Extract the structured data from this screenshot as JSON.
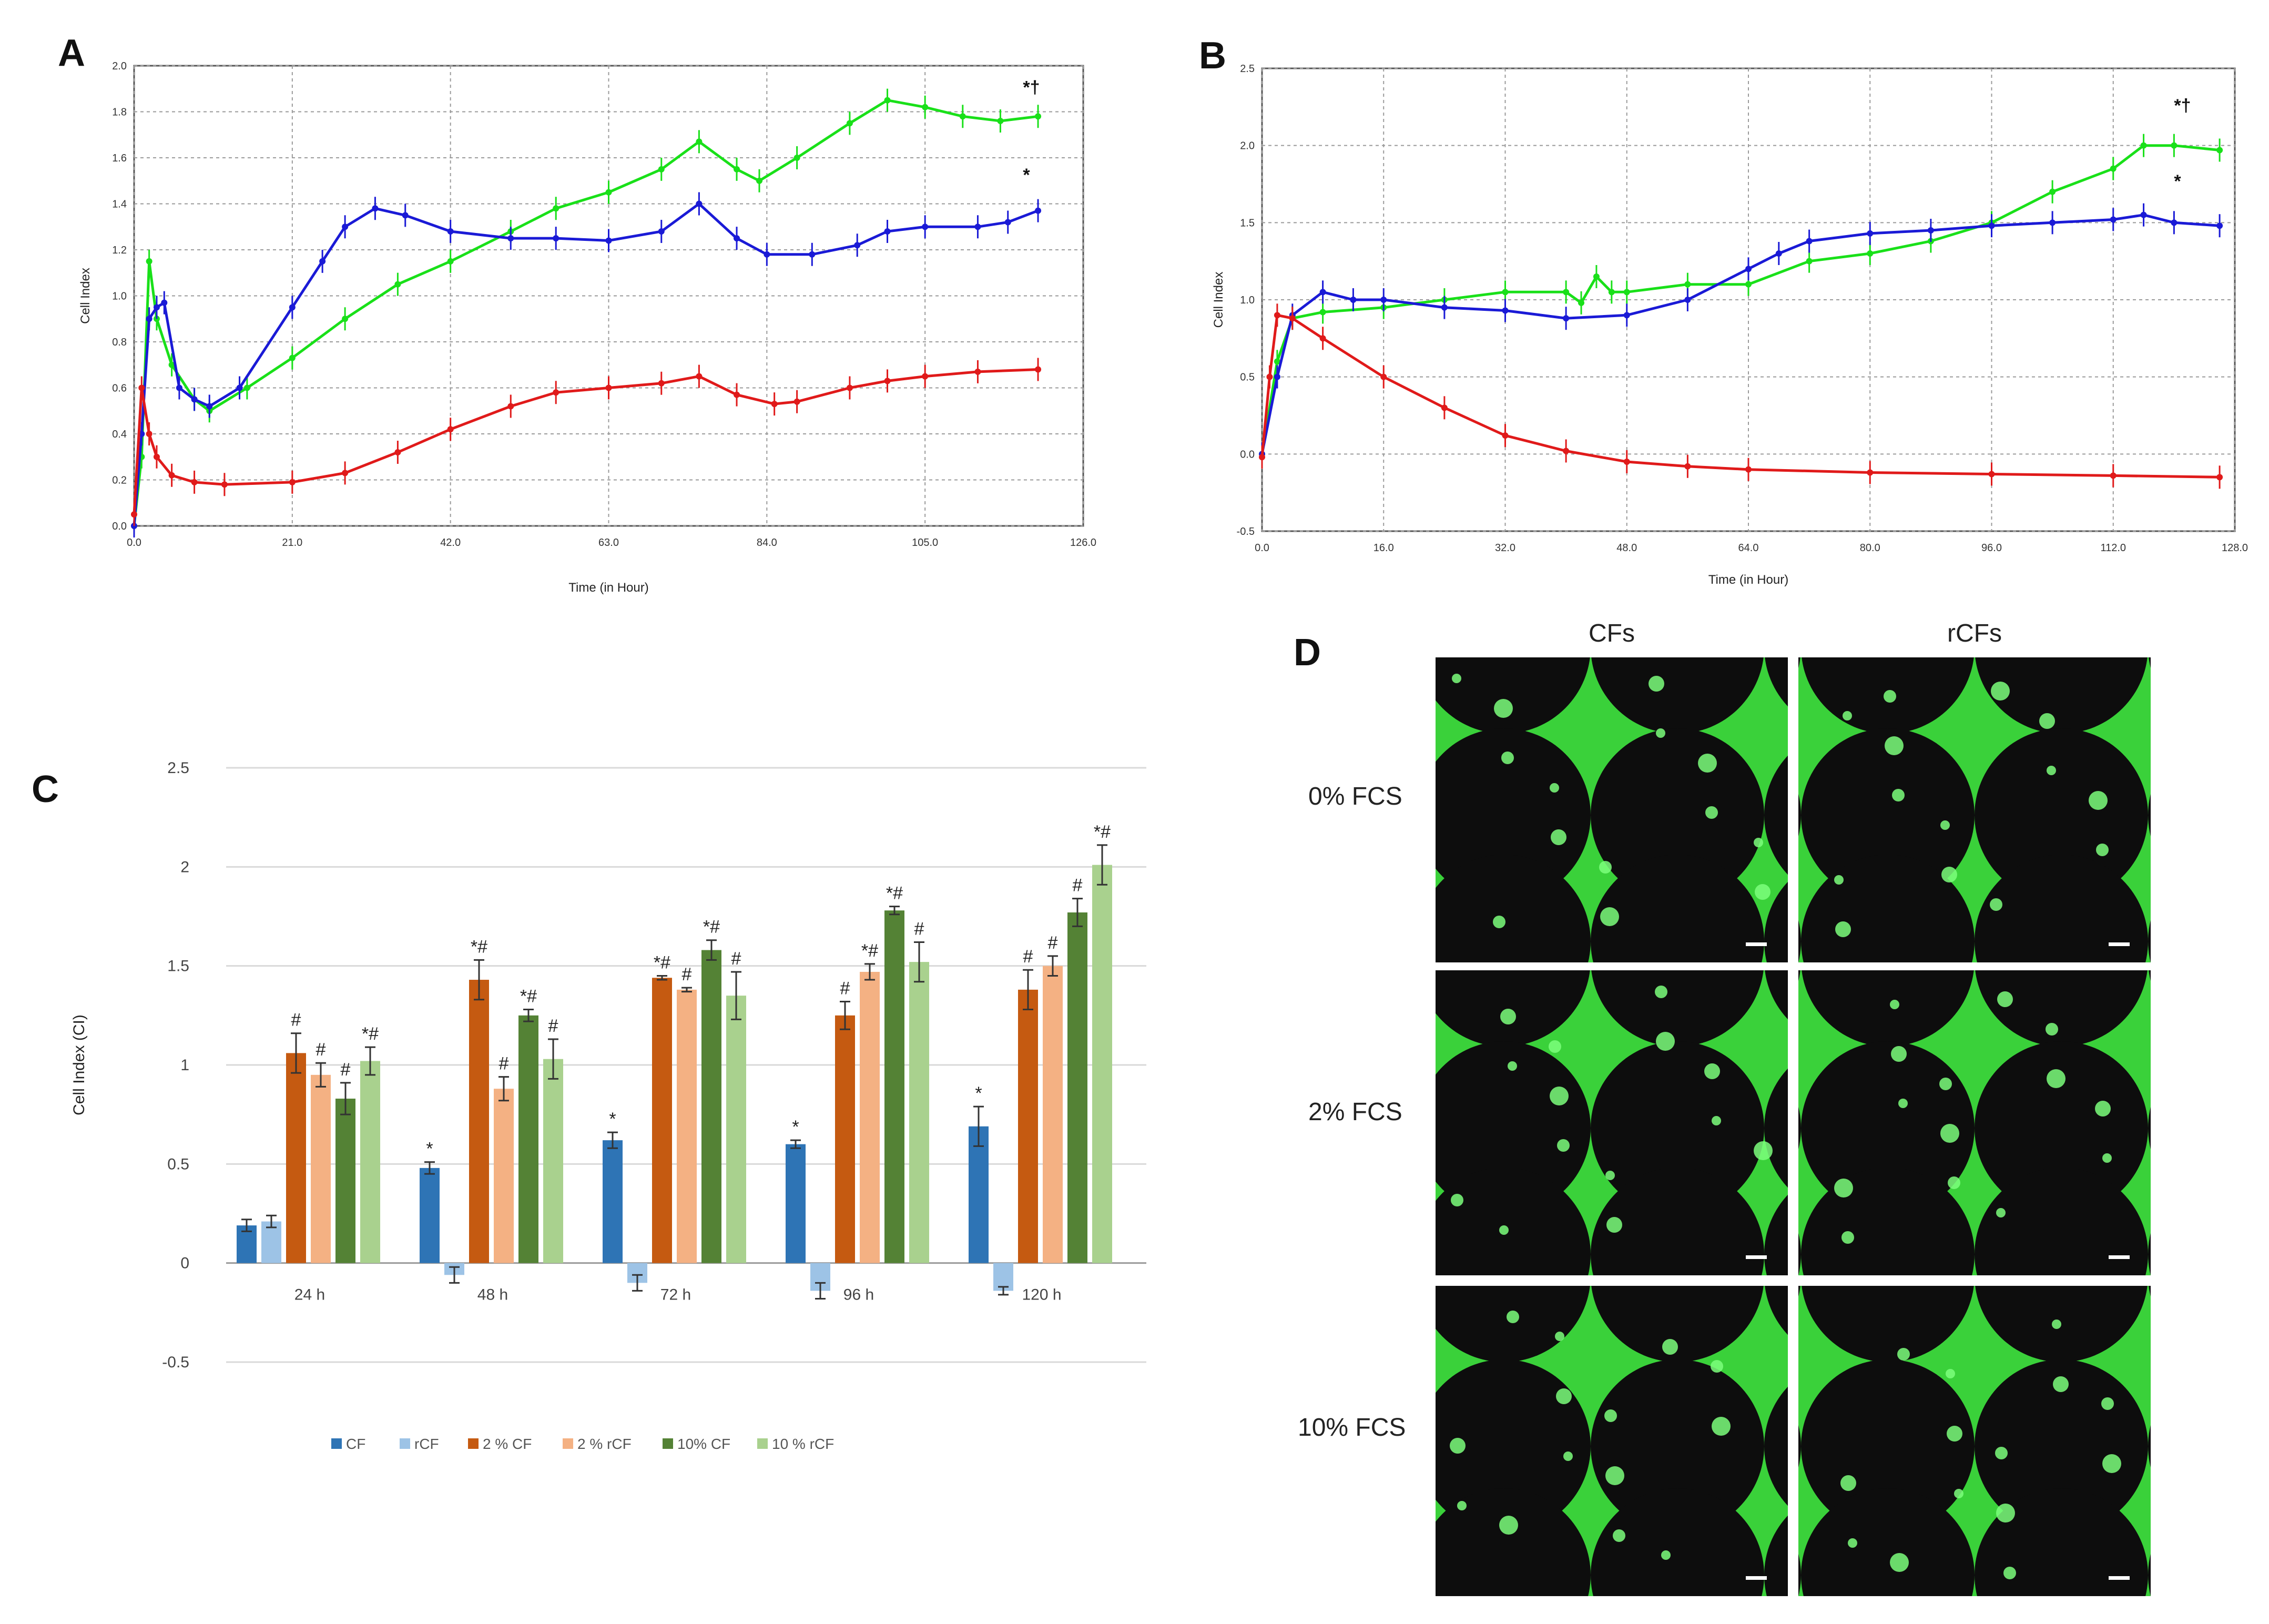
{
  "colors": {
    "green": "#19e019",
    "blue": "#1a1ad6",
    "red": "#e01a1a",
    "cf": "#2e74b5",
    "rcf": "#9dc3e6",
    "cf2": "#c55a11",
    "rcf2": "#f4b183",
    "cf10": "#548235",
    "rcf10": "#a9d18e",
    "micro_bg": "#3ad13a",
    "micro_hole": "#0d0d0d"
  },
  "panels": {
    "A": {
      "letter": "A",
      "ylabel": "Cell Index",
      "xlabel": "Time (in Hour)",
      "sig_top": "*†",
      "sig_mid": "*"
    },
    "B": {
      "letter": "B",
      "ylabel": "Cell Index",
      "xlabel": "Time (in Hour)",
      "sig_top": "*†",
      "sig_mid": "*"
    },
    "C": {
      "letter": "C"
    },
    "D": {
      "letter": "D",
      "col_headers": [
        "CFs",
        "rCFs"
      ],
      "row_labels": [
        "0% FCS",
        "2% FCS",
        "10% FCS"
      ]
    }
  },
  "chart_data": [
    {
      "id": "A",
      "type": "line",
      "xlabel": "Time (in Hour)",
      "ylabel": "Cell Index",
      "xlim": [
        0,
        126
      ],
      "ylim": [
        0,
        2.0
      ],
      "xticks": [
        "0.0",
        "21.0",
        "42.0",
        "63.0",
        "84.0",
        "105.0",
        "126.0"
      ],
      "yticks": [
        "0.0",
        "0.2",
        "0.4",
        "0.6",
        "0.8",
        "1.0",
        "1.2",
        "1.4",
        "1.6",
        "1.8",
        "2.0"
      ],
      "series": [
        {
          "name": "green",
          "color": "#19e019",
          "points": [
            [
              0,
              0
            ],
            [
              1,
              0.3
            ],
            [
              2,
              1.15
            ],
            [
              3,
              0.9
            ],
            [
              5,
              0.7
            ],
            [
              8,
              0.55
            ],
            [
              10,
              0.5
            ],
            [
              15,
              0.6
            ],
            [
              21,
              0.73
            ],
            [
              28,
              0.9
            ],
            [
              35,
              1.05
            ],
            [
              42,
              1.15
            ],
            [
              50,
              1.28
            ],
            [
              56,
              1.38
            ],
            [
              63,
              1.45
            ],
            [
              70,
              1.55
            ],
            [
              75,
              1.67
            ],
            [
              80,
              1.55
            ],
            [
              83,
              1.5
            ],
            [
              88,
              1.6
            ],
            [
              95,
              1.75
            ],
            [
              100,
              1.85
            ],
            [
              105,
              1.82
            ],
            [
              110,
              1.78
            ],
            [
              115,
              1.76
            ],
            [
              120,
              1.78
            ]
          ]
        },
        {
          "name": "blue",
          "color": "#1a1ad6",
          "points": [
            [
              0,
              0
            ],
            [
              1,
              0.4
            ],
            [
              2,
              0.9
            ],
            [
              3,
              0.95
            ],
            [
              4,
              0.97
            ],
            [
              6,
              0.6
            ],
            [
              8,
              0.55
            ],
            [
              10,
              0.52
            ],
            [
              14,
              0.6
            ],
            [
              21,
              0.95
            ],
            [
              25,
              1.15
            ],
            [
              28,
              1.3
            ],
            [
              32,
              1.38
            ],
            [
              36,
              1.35
            ],
            [
              42,
              1.28
            ],
            [
              50,
              1.25
            ],
            [
              56,
              1.25
            ],
            [
              63,
              1.24
            ],
            [
              70,
              1.28
            ],
            [
              75,
              1.4
            ],
            [
              80,
              1.25
            ],
            [
              84,
              1.18
            ],
            [
              90,
              1.18
            ],
            [
              96,
              1.22
            ],
            [
              100,
              1.28
            ],
            [
              105,
              1.3
            ],
            [
              112,
              1.3
            ],
            [
              116,
              1.32
            ],
            [
              120,
              1.37
            ]
          ]
        },
        {
          "name": "red",
          "color": "#e01a1a",
          "points": [
            [
              0,
              0.05
            ],
            [
              1,
              0.6
            ],
            [
              2,
              0.4
            ],
            [
              3,
              0.3
            ],
            [
              5,
              0.22
            ],
            [
              8,
              0.19
            ],
            [
              12,
              0.18
            ],
            [
              21,
              0.19
            ],
            [
              28,
              0.23
            ],
            [
              35,
              0.32
            ],
            [
              42,
              0.42
            ],
            [
              50,
              0.52
            ],
            [
              56,
              0.58
            ],
            [
              63,
              0.6
            ],
            [
              70,
              0.62
            ],
            [
              75,
              0.65
            ],
            [
              80,
              0.57
            ],
            [
              85,
              0.53
            ],
            [
              88,
              0.54
            ],
            [
              95,
              0.6
            ],
            [
              100,
              0.63
            ],
            [
              105,
              0.65
            ],
            [
              112,
              0.67
            ],
            [
              120,
              0.68
            ]
          ]
        }
      ],
      "annotations": [
        {
          "text": "*†",
          "x": 118,
          "y": 1.88
        },
        {
          "text": "*",
          "x": 118,
          "y": 1.5
        }
      ]
    },
    {
      "id": "B",
      "type": "line",
      "xlabel": "Time (in Hour)",
      "ylabel": "Cell Index",
      "xlim": [
        0,
        128
      ],
      "ylim": [
        -0.5,
        2.5
      ],
      "xticks": [
        "0.0",
        "16.0",
        "32.0",
        "48.0",
        "64.0",
        "80.0",
        "96.0",
        "112.0",
        "128.0"
      ],
      "yticks": [
        "-0.5",
        "0.0",
        "0.5",
        "1.0",
        "1.5",
        "2.0",
        "2.5"
      ],
      "series": [
        {
          "name": "green",
          "color": "#19e019",
          "points": [
            [
              0,
              0
            ],
            [
              2,
              0.6
            ],
            [
              4,
              0.88
            ],
            [
              8,
              0.92
            ],
            [
              16,
              0.95
            ],
            [
              24,
              1.0
            ],
            [
              32,
              1.05
            ],
            [
              40,
              1.05
            ],
            [
              42,
              0.98
            ],
            [
              44,
              1.15
            ],
            [
              46,
              1.05
            ],
            [
              48,
              1.05
            ],
            [
              56,
              1.1
            ],
            [
              64,
              1.1
            ],
            [
              72,
              1.25
            ],
            [
              80,
              1.3
            ],
            [
              88,
              1.38
            ],
            [
              96,
              1.5
            ],
            [
              104,
              1.7
            ],
            [
              112,
              1.85
            ],
            [
              116,
              2.0
            ],
            [
              120,
              2.0
            ],
            [
              126,
              1.97
            ]
          ]
        },
        {
          "name": "blue",
          "color": "#1a1ad6",
          "points": [
            [
              0,
              0
            ],
            [
              2,
              0.5
            ],
            [
              4,
              0.9
            ],
            [
              8,
              1.05
            ],
            [
              12,
              1.0
            ],
            [
              16,
              1.0
            ],
            [
              24,
              0.95
            ],
            [
              32,
              0.93
            ],
            [
              40,
              0.88
            ],
            [
              48,
              0.9
            ],
            [
              56,
              1.0
            ],
            [
              64,
              1.2
            ],
            [
              68,
              1.3
            ],
            [
              72,
              1.38
            ],
            [
              80,
              1.43
            ],
            [
              88,
              1.45
            ],
            [
              96,
              1.48
            ],
            [
              104,
              1.5
            ],
            [
              112,
              1.52
            ],
            [
              116,
              1.55
            ],
            [
              120,
              1.5
            ],
            [
              126,
              1.48
            ]
          ]
        },
        {
          "name": "red",
          "color": "#e01a1a",
          "points": [
            [
              0,
              -0.02
            ],
            [
              1,
              0.5
            ],
            [
              2,
              0.9
            ],
            [
              4,
              0.88
            ],
            [
              8,
              0.75
            ],
            [
              16,
              0.5
            ],
            [
              24,
              0.3
            ],
            [
              32,
              0.12
            ],
            [
              40,
              0.02
            ],
            [
              48,
              -0.05
            ],
            [
              56,
              -0.08
            ],
            [
              64,
              -0.1
            ],
            [
              80,
              -0.12
            ],
            [
              96,
              -0.13
            ],
            [
              112,
              -0.14
            ],
            [
              126,
              -0.15
            ]
          ]
        }
      ],
      "annotations": [
        {
          "text": "*†",
          "x": 120,
          "y": 2.22
        },
        {
          "text": "*",
          "x": 120,
          "y": 1.73
        }
      ]
    },
    {
      "id": "C",
      "type": "bar",
      "title": "",
      "xlabel": "",
      "ylabel": "Cell Index (CI)",
      "ylim": [
        -0.5,
        2.5
      ],
      "yticks": [
        "-0.5",
        "0",
        "0.5",
        "1",
        "1.5",
        "2",
        "2.5"
      ],
      "categories": [
        "24 h",
        "48 h",
        "72 h",
        "96 h",
        "120 h"
      ],
      "series": [
        {
          "name": "CF",
          "color": "#2e74b5",
          "values": [
            0.19,
            0.48,
            0.62,
            0.6,
            0.69
          ],
          "errors": [
            0.03,
            0.03,
            0.04,
            0.02,
            0.1
          ],
          "marks": [
            "",
            "*",
            "*",
            "*",
            "*"
          ]
        },
        {
          "name": "rCF",
          "color": "#9dc3e6",
          "values": [
            0.21,
            -0.06,
            -0.1,
            -0.14,
            -0.14
          ],
          "errors": [
            0.03,
            0.04,
            0.04,
            0.04,
            0.02
          ],
          "marks": [
            "",
            "",
            "",
            "",
            ""
          ]
        },
        {
          "name": "2 % CF",
          "color": "#c55a11",
          "values": [
            1.06,
            1.43,
            1.44,
            1.25,
            1.38
          ],
          "errors": [
            0.1,
            0.1,
            0.01,
            0.07,
            0.1
          ],
          "marks": [
            "#",
            "*#",
            "*#",
            "#",
            "#"
          ]
        },
        {
          "name": "2 % rCF",
          "color": "#f4b183",
          "values": [
            0.95,
            0.88,
            1.38,
            1.47,
            1.5
          ],
          "errors": [
            0.06,
            0.06,
            0.01,
            0.04,
            0.05
          ],
          "marks": [
            "#",
            "#",
            "#",
            "*#",
            "#"
          ]
        },
        {
          "name": "10% CF",
          "color": "#548235",
          "values": [
            0.83,
            1.25,
            1.58,
            1.78,
            1.77
          ],
          "errors": [
            0.08,
            0.03,
            0.05,
            0.02,
            0.07
          ],
          "marks": [
            "#",
            "*#",
            "*#",
            "*#",
            "#"
          ]
        },
        {
          "name": "10 % rCF",
          "color": "#a9d18e",
          "values": [
            1.02,
            1.03,
            1.35,
            1.52,
            2.01
          ],
          "errors": [
            0.07,
            0.1,
            0.12,
            0.1,
            0.1
          ],
          "marks": [
            "*#",
            "#",
            "#",
            "#",
            "*#"
          ]
        }
      ],
      "legend": [
        "CF",
        "rCF",
        "2 % CF",
        "2 % rCF",
        "10% CF",
        "10 % rCF"
      ]
    }
  ]
}
